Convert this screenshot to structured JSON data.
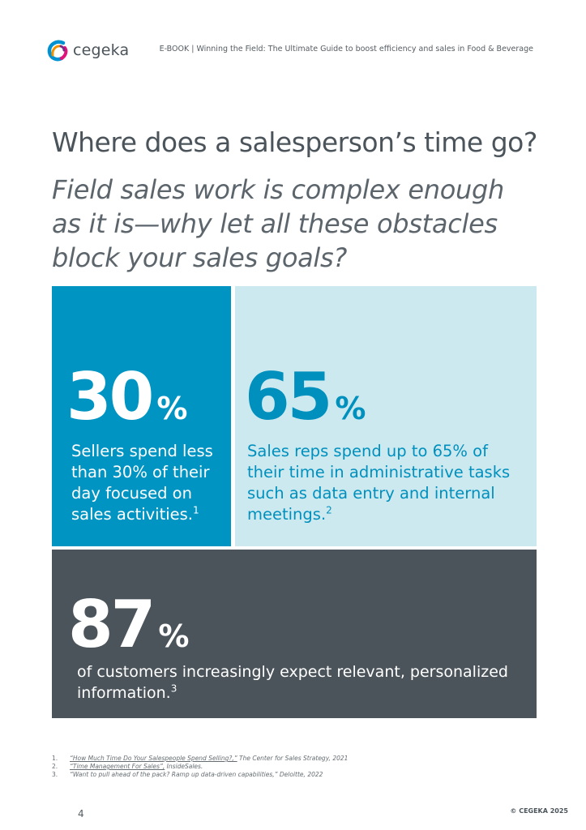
{
  "header": {
    "logo_text": "cegeka",
    "title": "E-BOOK  |  Winning the Field: The Ultimate Guide to boost efficiency and sales in Food & Beverage"
  },
  "page_title": "Where does a salesperson’s time go?",
  "subtitle": "Field sales work is complex enough as it is—why let all these obstacles block your sales goals?",
  "stats": [
    {
      "value": "30",
      "unit": "%",
      "description": "Sellers spend less than 30% of their day focused on sales activities.",
      "footnote_ref": "1",
      "background": "#0094c3",
      "text_color": "#ffffff"
    },
    {
      "value": "65",
      "unit": "%",
      "description": "Sales reps spend up to 65% of their time in administrative tasks such as data entry and internal meetings.",
      "footnote_ref": "2",
      "background": "#cce9f0",
      "text_color": "#0090bd"
    },
    {
      "value": "87",
      "unit": "%",
      "description": "of customers increasingly expect relevant, personalized information.",
      "footnote_ref": "3",
      "background": "#4b545b",
      "text_color": "#ffffff"
    }
  ],
  "footnotes": [
    {
      "num": "1.",
      "link": "“How Much Time Do Your Salespeople Spend Selling?,”",
      "source": " The Center for Sales Strategy, 2021"
    },
    {
      "num": "2.",
      "link": "“Time Management For Sales”,",
      "source": " InsideSales."
    },
    {
      "num": "3.",
      "link": "",
      "source": "“Want to pull ahead of the pack? Ramp up data-driven capabilities,” Deloitte, 2022"
    }
  ],
  "page_number": "4",
  "copyright": "© CEGEKA 2025",
  "colors": {
    "accent_blue": "#0094c3",
    "light_blue": "#cce9f0",
    "dark_gray": "#4b545b"
  }
}
